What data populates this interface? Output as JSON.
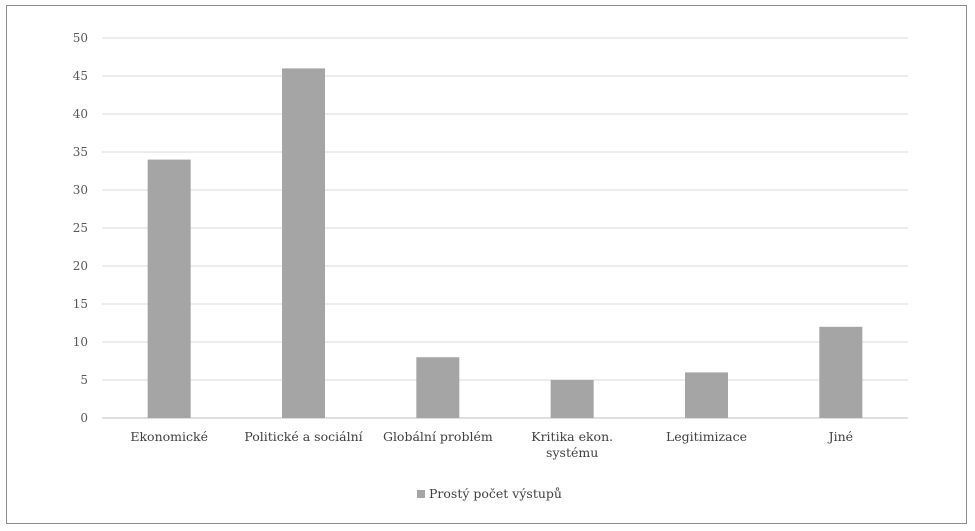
{
  "chart_data": {
    "type": "bar",
    "categories": [
      [
        "Ekonomické"
      ],
      [
        "Politické a sociální"
      ],
      [
        "Globální problém"
      ],
      [
        "Kritika ekon.",
        "systému"
      ],
      [
        "Legitimizace"
      ],
      [
        "Jiné"
      ]
    ],
    "series": [
      {
        "name": "Prostý počet výstupů",
        "values": [
          34,
          46,
          8,
          5,
          6,
          12
        ],
        "color": "#a5a5a5"
      }
    ],
    "ylim": [
      0,
      50
    ],
    "yticks": [
      0,
      5,
      10,
      15,
      20,
      25,
      30,
      35,
      40,
      45,
      50
    ],
    "grid": true,
    "legend_position": "bottom"
  }
}
